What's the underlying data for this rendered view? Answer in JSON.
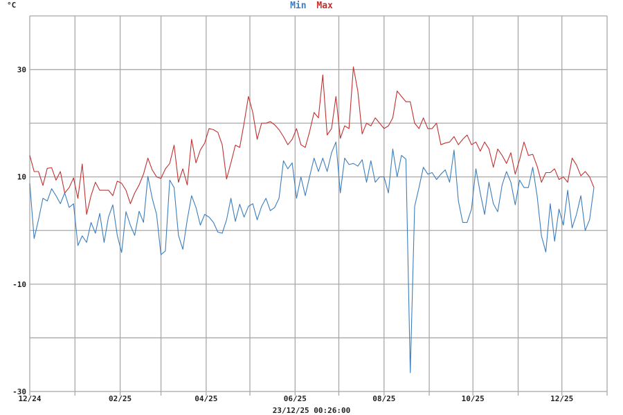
{
  "chart_data": {
    "type": "line",
    "title_parts": [
      {
        "text": "Min",
        "color": "#3b7dbc"
      },
      {
        "text": "Max",
        "color": "#c0302f"
      }
    ],
    "ylabel": "°C",
    "xlabel": "23/12/25 00:26:00",
    "ylim": [
      -30,
      40
    ],
    "y_grid": [
      -30,
      -20,
      -10,
      0,
      10,
      20,
      30,
      40
    ],
    "y_tick_labels": [
      "30",
      "10",
      "-10",
      "-30"
    ],
    "xlim": [
      "2024-12-01",
      "2026-01-01"
    ],
    "x_grid": [
      "2024-12-01",
      "2025-01-01",
      "2025-02-01",
      "2025-03-01",
      "2025-04-01",
      "2025-05-01",
      "2025-06-01",
      "2025-07-01",
      "2025-08-01",
      "2025-09-01",
      "2025-10-01",
      "2025-11-01",
      "2025-12-01",
      "2026-01-01"
    ],
    "x_tick_labels": [
      {
        "date": "2024-12-01",
        "label": "12/24"
      },
      {
        "date": "2025-02-01",
        "label": "02/25"
      },
      {
        "date": "2025-04-01",
        "label": "04/25"
      },
      {
        "date": "2025-06-01",
        "label": "06/25"
      },
      {
        "date": "2025-08-01",
        "label": "08/25"
      },
      {
        "date": "2025-10-01",
        "label": "10/25"
      },
      {
        "date": "2025-12-01",
        "label": "12/25"
      }
    ],
    "grid": true,
    "x": [
      "2024-12-01",
      "2024-12-04",
      "2024-12-07",
      "2024-12-10",
      "2024-12-13",
      "2024-12-16",
      "2024-12-19",
      "2024-12-22",
      "2024-12-25",
      "2024-12-28",
      "2024-12-31",
      "2025-01-03",
      "2025-01-06",
      "2025-01-09",
      "2025-01-12",
      "2025-01-15",
      "2025-01-18",
      "2025-01-21",
      "2025-01-24",
      "2025-01-27",
      "2025-01-30",
      "2025-02-02",
      "2025-02-05",
      "2025-02-08",
      "2025-02-11",
      "2025-02-14",
      "2025-02-17",
      "2025-02-20",
      "2025-02-23",
      "2025-02-26",
      "2025-03-01",
      "2025-03-04",
      "2025-03-07",
      "2025-03-10",
      "2025-03-13",
      "2025-03-16",
      "2025-03-19",
      "2025-03-22",
      "2025-03-25",
      "2025-03-28",
      "2025-03-31",
      "2025-04-03",
      "2025-04-06",
      "2025-04-09",
      "2025-04-12",
      "2025-04-15",
      "2025-04-18",
      "2025-04-21",
      "2025-04-24",
      "2025-04-27",
      "2025-04-30",
      "2025-05-03",
      "2025-05-06",
      "2025-05-09",
      "2025-05-12",
      "2025-05-15",
      "2025-05-18",
      "2025-05-21",
      "2025-05-24",
      "2025-05-27",
      "2025-05-30",
      "2025-06-02",
      "2025-06-05",
      "2025-06-08",
      "2025-06-11",
      "2025-06-14",
      "2025-06-17",
      "2025-06-20",
      "2025-06-23",
      "2025-06-26",
      "2025-06-29",
      "2025-07-02",
      "2025-07-05",
      "2025-07-08",
      "2025-07-11",
      "2025-07-14",
      "2025-07-17",
      "2025-07-20",
      "2025-07-23",
      "2025-07-26",
      "2025-07-29",
      "2025-08-01",
      "2025-08-04",
      "2025-08-07",
      "2025-08-10",
      "2025-08-13",
      "2025-08-16",
      "2025-08-19",
      "2025-08-22",
      "2025-08-25",
      "2025-08-28",
      "2025-08-31",
      "2025-09-03",
      "2025-09-06",
      "2025-09-09",
      "2025-09-12",
      "2025-09-15",
      "2025-09-18",
      "2025-09-21",
      "2025-09-24",
      "2025-09-27",
      "2025-09-30",
      "2025-10-03",
      "2025-10-06",
      "2025-10-09",
      "2025-10-12",
      "2025-10-15",
      "2025-10-18",
      "2025-10-21",
      "2025-10-24",
      "2025-10-27",
      "2025-10-30",
      "2025-11-02",
      "2025-11-05",
      "2025-11-08",
      "2025-11-11",
      "2025-11-14",
      "2025-11-17",
      "2025-11-20",
      "2025-11-23",
      "2025-11-26",
      "2025-11-29",
      "2025-12-02",
      "2025-12-05",
      "2025-12-08",
      "2025-12-11",
      "2025-12-14",
      "2025-12-17",
      "2025-12-20",
      "2025-12-23"
    ],
    "series": [
      {
        "name": "Min",
        "color": "#3b7dbc",
        "values": [
          8.8,
          -1.5,
          2,
          6,
          5.5,
          7.8,
          6.5,
          5,
          7,
          4.3,
          5,
          -2.8,
          -1,
          -2.2,
          1.5,
          -0.5,
          3.2,
          -2.2,
          2.5,
          4.8,
          -0.9,
          -4.1,
          3.5,
          1,
          -0.9,
          3.6,
          1.5,
          10.1,
          6,
          3,
          -4.5,
          -3.8,
          9.4,
          8,
          -0.9,
          -3.5,
          2,
          6.5,
          4.3,
          1,
          3,
          2.5,
          1.5,
          -0.3,
          -0.5,
          2,
          6,
          1.7,
          4.9,
          2.5,
          4.5,
          5,
          2,
          4.5,
          6,
          3.7,
          4.3,
          6,
          13,
          11.5,
          12.6,
          6,
          10,
          6.5,
          10.1,
          13.5,
          11,
          13.5,
          11,
          14.5,
          16.5,
          7,
          13.5,
          12.3,
          12.5,
          12,
          13.2,
          9,
          13,
          9,
          10,
          10,
          7,
          15.2,
          10,
          14,
          13.3,
          -26.5,
          4.5,
          8,
          11.8,
          10.5,
          10.8,
          9.5,
          10.5,
          11.3,
          9,
          15,
          5.5,
          1.5,
          1.5,
          4,
          11.5,
          7,
          3,
          9,
          5,
          3.5,
          8.5,
          11,
          9,
          4.8,
          9.4,
          8,
          8,
          11.8,
          6.5,
          -1,
          -4,
          5,
          -2,
          4,
          1,
          7.5,
          0.5,
          3,
          6.5,
          0,
          2,
          8
        ]
      },
      {
        "name": "Max",
        "color": "#c0302f",
        "values": [
          14,
          11,
          11,
          8.4,
          11.6,
          11.7,
          9.4,
          11,
          7,
          8,
          9.8,
          6,
          12.4,
          3,
          6.5,
          9,
          7.5,
          7.5,
          7.5,
          6.5,
          9.2,
          8.8,
          7.5,
          5,
          7,
          8.5,
          10.5,
          13.5,
          11.3,
          10,
          9.7,
          11.5,
          12.5,
          15.9,
          9,
          11.5,
          8.5,
          17,
          12.6,
          15,
          16.3,
          19,
          18.8,
          18.3,
          16,
          9.6,
          12.6,
          15.9,
          15.5,
          20,
          25,
          22,
          17,
          20,
          20,
          20.3,
          19.7,
          18.8,
          17.5,
          16,
          17,
          19,
          16,
          15.5,
          18.5,
          22,
          21,
          29,
          17.8,
          19,
          25,
          17.2,
          19.5,
          19,
          30.5,
          26,
          18,
          20,
          19.5,
          21,
          20,
          19,
          19.5,
          21,
          26,
          25,
          24,
          24,
          20,
          19,
          21,
          19,
          19,
          20,
          16,
          16.3,
          16.5,
          17.5,
          16,
          17,
          17.8,
          16,
          16.5,
          14.8,
          16.5,
          15.2,
          11.8,
          15.2,
          14,
          12.5,
          14.5,
          10.5,
          13.2,
          16.5,
          14,
          14.2,
          12,
          9,
          10.8,
          10.8,
          11.5,
          9.5,
          10,
          9,
          13.5,
          12.2,
          10.2,
          11,
          10,
          8
        ]
      }
    ]
  }
}
